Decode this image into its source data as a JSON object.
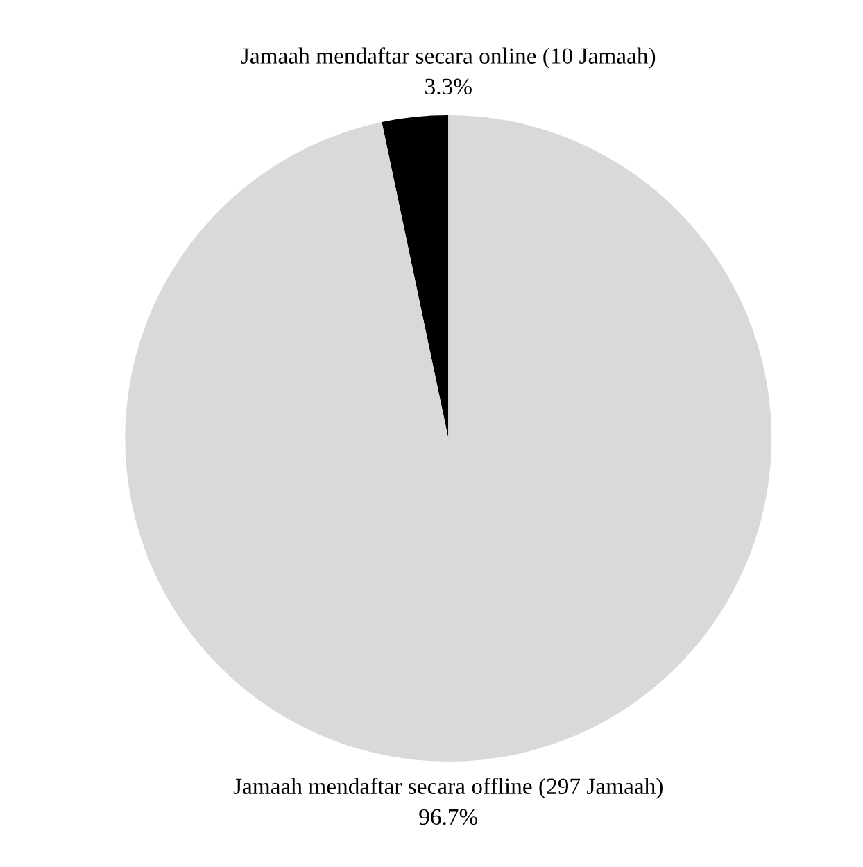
{
  "chart_data": {
    "type": "pie",
    "categories": [
      "Jamaah mendaftar secara online (10 Jamaah)",
      "Jamaah mendaftar secara offline (297 Jamaah)"
    ],
    "values": [
      3.3,
      96.7
    ],
    "value_labels": [
      "3.3%",
      "96.7%"
    ],
    "colors": [
      "#000000",
      "#d9d9d9"
    ],
    "legend": false
  }
}
